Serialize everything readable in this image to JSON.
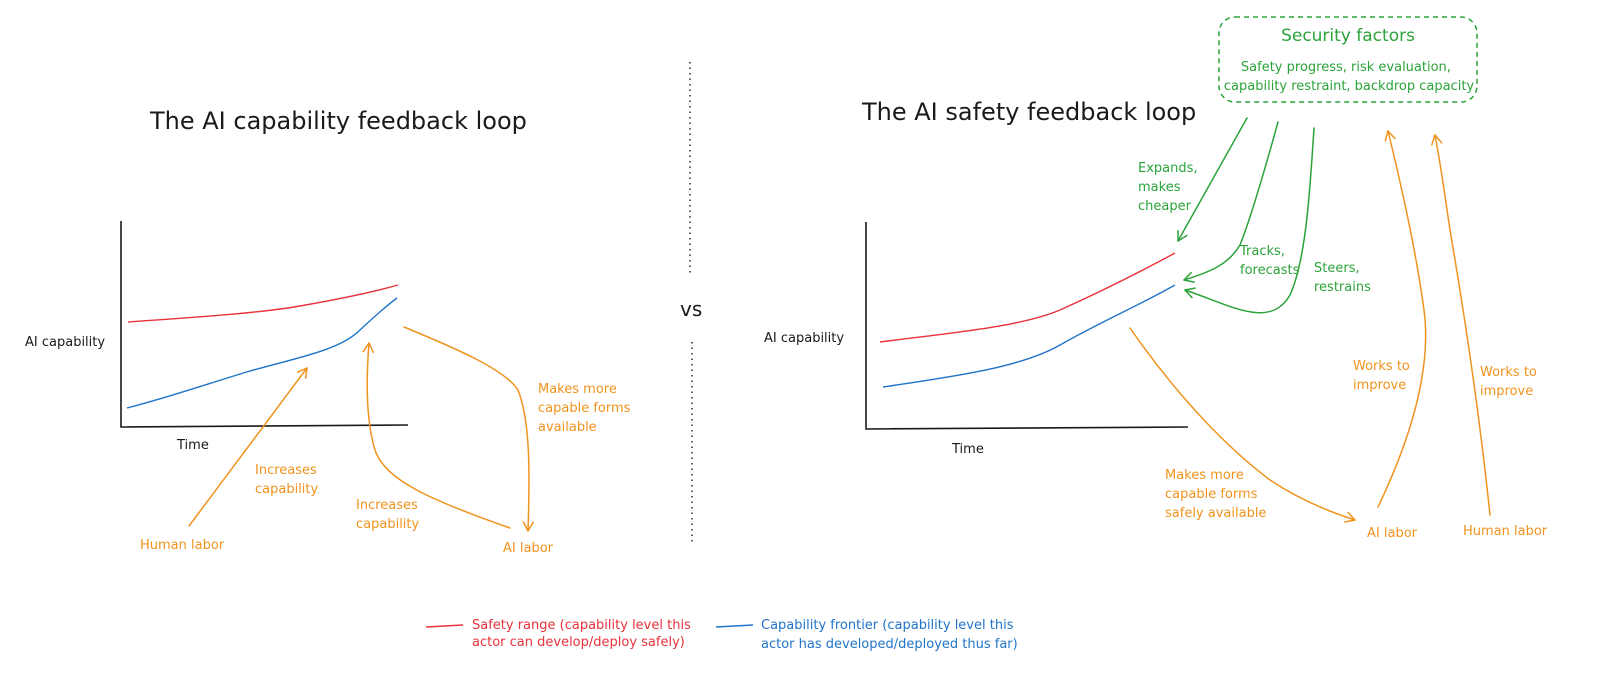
{
  "left": {
    "title": "The AI capability feedback loop",
    "ylabel": "AI capability",
    "xlabel": "Time",
    "annotations": {
      "human_increases": [
        "Increases",
        "capability"
      ],
      "human_labor": "Human labor",
      "ai_increases": [
        "Increases",
        "capability"
      ],
      "ai_labor": "AI labor",
      "makes_more": [
        "Makes more",
        "capable forms",
        "available"
      ]
    }
  },
  "separator": {
    "label": "vs"
  },
  "right": {
    "title": "The AI safety feedback loop",
    "ylabel": "AI capability",
    "xlabel": "Time",
    "security": {
      "title": "Security factors",
      "lines": [
        "Safety progress, risk evaluation,",
        "capability restraint, backdrop capacity"
      ]
    },
    "annotations": {
      "expands": [
        "Expands,",
        "makes",
        "cheaper"
      ],
      "tracks": [
        "Tracks,",
        "forecasts"
      ],
      "steers": [
        "Steers,",
        "restrains"
      ],
      "makes_more": [
        "Makes more",
        "capable forms",
        "safely available"
      ],
      "ai_labor": "AI labor",
      "human_labor": "Human labor",
      "works1": [
        "Works to",
        "improve"
      ],
      "works2": [
        "Works to",
        "improve"
      ]
    }
  },
  "legend": {
    "safety": [
      "Safety range (capability level this",
      "actor can develop/deploy safely)"
    ],
    "frontier": [
      "Capability frontier (capability level this",
      "actor has developed/deployed thus far)"
    ]
  },
  "colors": {
    "red": "#e8333a",
    "blue": "#1f74c9",
    "orange": "#f0931e",
    "green": "#2ba33a"
  }
}
